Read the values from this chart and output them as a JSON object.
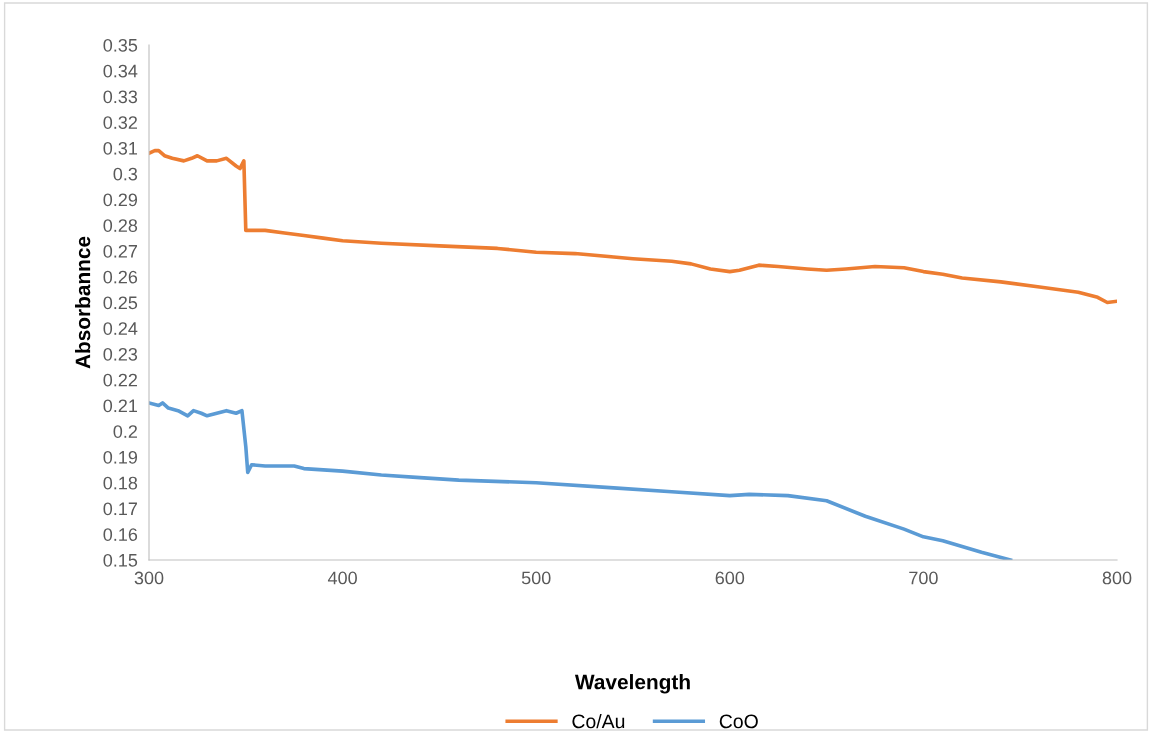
{
  "chart_data": {
    "type": "line",
    "xlabel": "Wavelength",
    "ylabel": "Absorbannce",
    "xlim": [
      300,
      800
    ],
    "xticks": [
      300,
      400,
      500,
      600,
      700,
      800
    ],
    "ylim": [
      0.15,
      0.35
    ],
    "yticks": [
      0.15,
      0.16,
      0.17,
      0.18,
      0.19,
      0.2,
      0.21,
      0.22,
      0.23,
      0.24,
      0.25,
      0.26,
      0.27,
      0.28,
      0.29,
      0.3,
      0.31,
      0.32,
      0.33,
      0.34,
      0.35
    ],
    "grid": false,
    "legend": "bottom",
    "marker": "none",
    "line_style": "solid",
    "series": [
      {
        "name": "Co/Au",
        "color": "#ed7d31",
        "x": [
          300,
          303,
          305,
          308,
          312,
          318,
          322,
          325,
          330,
          335,
          340,
          345,
          347,
          349,
          350,
          355,
          360,
          370,
          380,
          390,
          400,
          420,
          450,
          480,
          500,
          520,
          550,
          570,
          580,
          590,
          600,
          605,
          615,
          625,
          640,
          650,
          660,
          675,
          690,
          700,
          710,
          720,
          740,
          760,
          780,
          790,
          795,
          800
        ],
        "values": [
          0.308,
          0.309,
          0.309,
          0.307,
          0.306,
          0.305,
          0.306,
          0.307,
          0.305,
          0.305,
          0.306,
          0.303,
          0.302,
          0.305,
          0.278,
          0.278,
          0.278,
          0.277,
          0.276,
          0.275,
          0.274,
          0.273,
          0.272,
          0.271,
          0.2695,
          0.269,
          0.267,
          0.266,
          0.265,
          0.263,
          0.262,
          0.2625,
          0.2645,
          0.264,
          0.263,
          0.2625,
          0.263,
          0.264,
          0.2635,
          0.262,
          0.261,
          0.2595,
          0.258,
          0.256,
          0.254,
          0.252,
          0.25,
          0.2505
        ]
      },
      {
        "name": "CoO",
        "color": "#5b9bd5",
        "x": [
          300,
          305,
          307,
          310,
          315,
          320,
          323,
          327,
          330,
          335,
          340,
          345,
          348,
          350,
          351,
          353,
          360,
          375,
          380,
          400,
          420,
          440,
          460,
          500,
          540,
          570,
          600,
          610,
          630,
          650,
          670,
          690,
          700,
          710,
          730,
          745
        ],
        "values": [
          0.211,
          0.21,
          0.211,
          0.209,
          0.208,
          0.206,
          0.208,
          0.207,
          0.206,
          0.207,
          0.208,
          0.207,
          0.208,
          0.194,
          0.184,
          0.187,
          0.1865,
          0.1865,
          0.1855,
          0.1845,
          0.183,
          0.182,
          0.181,
          0.18,
          0.178,
          0.1765,
          0.175,
          0.1755,
          0.175,
          0.173,
          0.167,
          0.162,
          0.159,
          0.1575,
          0.153,
          0.15
        ]
      }
    ]
  }
}
